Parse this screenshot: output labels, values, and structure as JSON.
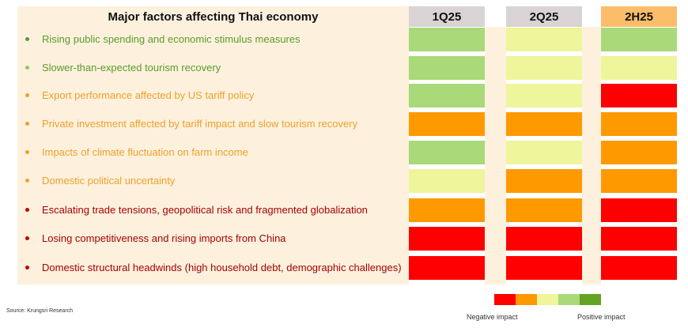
{
  "chart_data": {
    "type": "table",
    "title": "Major factors affecting Thai economy",
    "columns": [
      "1Q25",
      "2Q25",
      "2H25"
    ],
    "column_colors": [
      "#d9d3d3",
      "#d9d3d3",
      "#fbbd6a"
    ],
    "rows": [
      {
        "label": "Rising public spending and economic stimulus measures",
        "text_color": "#5b9b2a",
        "bullet_color": "#5b9b2a",
        "ratings": [
          "light-green",
          "pale-yellow",
          "light-green"
        ]
      },
      {
        "label": "Slower-than-expected tourism recovery",
        "text_color": "#5b9b2a",
        "bullet_color": "#8dc860",
        "ratings": [
          "light-green",
          "pale-yellow",
          "pale-yellow"
        ]
      },
      {
        "label": "Export performance affected by US tariff policy",
        "text_color": "#f0a028",
        "bullet_color": "#f0a028",
        "ratings": [
          "light-green",
          "pale-yellow",
          "red"
        ]
      },
      {
        "label": "Private investment affected by tariff impact and slow tourism recovery",
        "text_color": "#f0a028",
        "bullet_color": "#f0a028",
        "ratings": [
          "orange",
          "orange",
          "orange"
        ]
      },
      {
        "label": "Impacts of climate fluctuation on farm income",
        "text_color": "#f0a028",
        "bullet_color": "#f0a028",
        "ratings": [
          "light-green",
          "pale-yellow",
          "orange"
        ]
      },
      {
        "label": "Domestic political uncertainty",
        "text_color": "#f0a028",
        "bullet_color": "#f0a028",
        "ratings": [
          "pale-yellow",
          "orange",
          "orange"
        ]
      },
      {
        "label": "Escalating trade tensions, geopolitical risk and fragmented globalization",
        "text_color": "#a80000",
        "bullet_color": "#c00000",
        "ratings": [
          "orange",
          "orange",
          "red"
        ]
      },
      {
        "label": "Losing competitiveness and rising imports from China",
        "text_color": "#a80000",
        "bullet_color": "#c00000",
        "ratings": [
          "red",
          "red",
          "red"
        ]
      },
      {
        "label": "Domestic structural headwinds (high household debt, demographic challenges)",
        "text_color": "#a80000",
        "bullet_color": "#c00000",
        "ratings": [
          "red",
          "red",
          "red"
        ]
      }
    ],
    "rating_colors": {
      "red": "#ff0000",
      "orange": "#ff9900",
      "pale-yellow": "#eef59a",
      "light-green": "#a9d979",
      "green": "#65a322"
    },
    "legend": {
      "scale": [
        "red",
        "orange",
        "pale-yellow",
        "light-green",
        "green"
      ],
      "negative_label": "Negative impact",
      "positive_label": "Positive impact"
    }
  },
  "source": "Source: Krungsri Research"
}
